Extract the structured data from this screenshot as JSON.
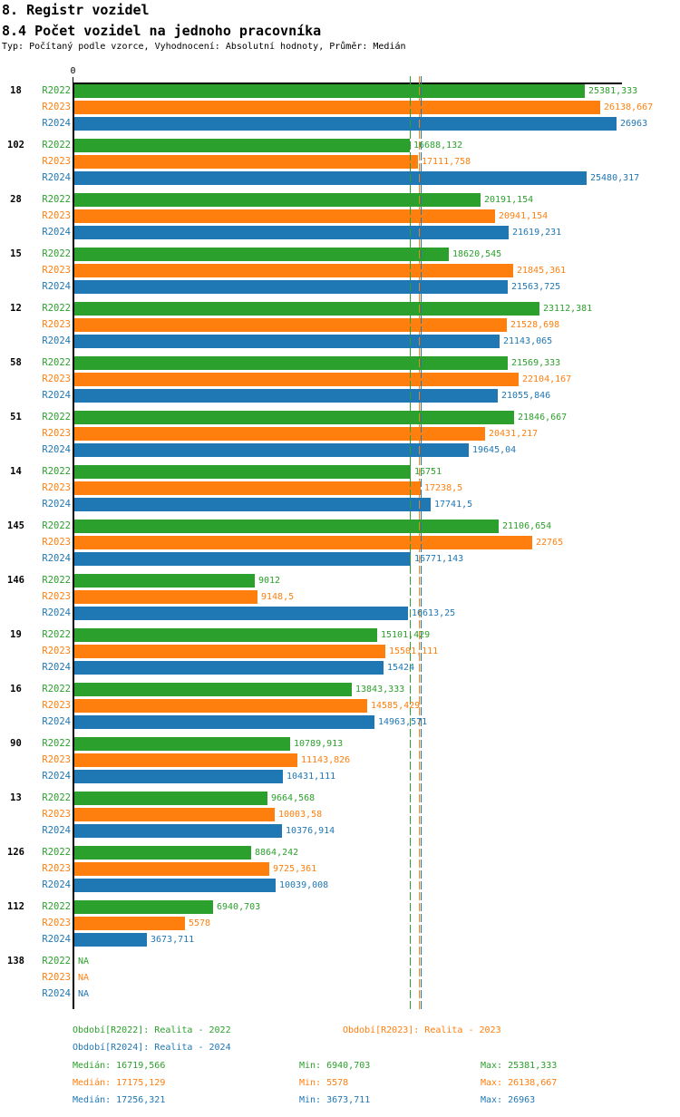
{
  "header": {
    "title_line1": "8. Registr vozidel",
    "title_line2": "8.4 Počet vozidel na jednoho pracovníka",
    "subtitle": "Typ: Počítaný podle vzorce, Vyhodnocení: Absolutní hodnoty, Průměr: Medián"
  },
  "axis": {
    "origin_label": "0"
  },
  "chart_data": {
    "type": "bar",
    "orientation": "horizontal",
    "title": "8.4 Počet vozidel na jednoho pracovníka",
    "value_axis_min": 0,
    "value_axis_max": 26963,
    "grid": "off",
    "categories": [
      "18",
      "102",
      "28",
      "15",
      "12",
      "58",
      "51",
      "14",
      "145",
      "146",
      "19",
      "16",
      "90",
      "13",
      "126",
      "112",
      "138"
    ],
    "series": [
      {
        "name": "R2022",
        "color": "#2ca02c",
        "values": [
          25381.333,
          16688.132,
          20191.154,
          18620.545,
          23112.381,
          21569.333,
          21846.667,
          16751,
          21106.654,
          9012,
          15101.429,
          13843.333,
          10789.913,
          9664.568,
          8864.242,
          6940.703,
          null
        ],
        "labels": [
          "25381,333",
          "16688,132",
          "20191,154",
          "18620,545",
          "23112,381",
          "21569,333",
          "21846,667",
          "16751",
          "21106,654",
          "9012",
          "15101,429",
          "13843,333",
          "10789,913",
          "9664,568",
          "8864,242",
          "6940,703",
          "NA"
        ],
        "median": 16719.566
      },
      {
        "name": "R2023",
        "color": "#ff7f0e",
        "values": [
          26138.667,
          17111.758,
          20941.154,
          21845.361,
          21528.698,
          22104.167,
          20431.217,
          17238.5,
          22765,
          9148.5,
          15501.111,
          14585.429,
          11143.826,
          10003.58,
          9725.361,
          5578,
          null
        ],
        "labels": [
          "26138,667",
          "17111,758",
          "20941,154",
          "21845,361",
          "21528,698",
          "22104,167",
          "20431,217",
          "17238,5",
          "22765",
          "9148,5",
          "15501,111",
          "14585,429",
          "11143,826",
          "10003,58",
          "9725,361",
          "5578",
          "NA"
        ],
        "median": 17175.129
      },
      {
        "name": "R2024",
        "color": "#1f77b4",
        "values": [
          26963,
          25480.317,
          21619.231,
          21563.725,
          21143.065,
          21055.846,
          19645.04,
          17741.5,
          16771.143,
          16613.25,
          15424,
          14963.571,
          10431.111,
          10376.914,
          10039.008,
          3673.711,
          null
        ],
        "labels": [
          "26963",
          "25480,317",
          "21619,231",
          "21563,725",
          "21143,065",
          "21055,846",
          "19645,04",
          "17741,5",
          "16771,143",
          "16613,25",
          "15424",
          "14963,571",
          "10431,111",
          "10376,914",
          "10039,008",
          "3673,711",
          "NA"
        ],
        "median": 17256.321
      }
    ]
  },
  "footer": {
    "periods": [
      {
        "series": "R2022",
        "text": "Období[R2022]: Realita - 2022"
      },
      {
        "series": "R2023",
        "text": "Období[R2023]: Realita - 2023"
      },
      {
        "series": "R2024",
        "text": "Období[R2024]: Realita - 2024"
      }
    ],
    "stats": [
      {
        "series": "R2022",
        "median": "Medián: 16719,566",
        "min": "Min: 6940,703",
        "max": "Max: 25381,333"
      },
      {
        "series": "R2023",
        "median": "Medián: 17175,129",
        "min": "Min: 5578",
        "max": "Max: 26138,667"
      },
      {
        "series": "R2024",
        "median": "Medián: 17256,321",
        "min": "Min: 3673,711",
        "max": "Max: 26963"
      }
    ]
  }
}
